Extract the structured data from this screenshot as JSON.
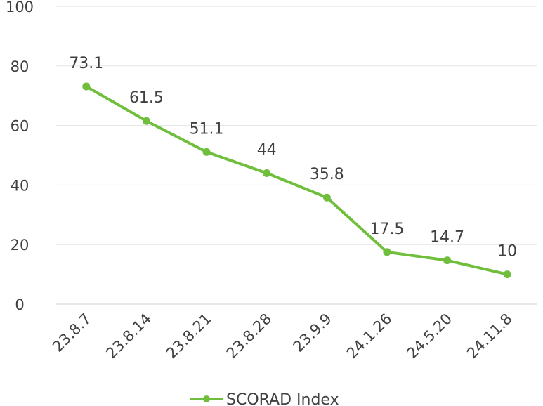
{
  "chart_data": {
    "type": "line",
    "title": "",
    "xlabel": "",
    "ylabel": "",
    "ylim": [
      0,
      100
    ],
    "yticks": [
      0,
      20,
      40,
      60,
      80,
      100
    ],
    "grid": true,
    "legend": "bottom",
    "categories": [
      "23.8.7",
      "23.8.14",
      "23.8.21",
      "23.8.28",
      "23.9.9",
      "24.1.26",
      "24.5.20",
      "24.11.8"
    ],
    "series": [
      {
        "name": "SCORAD Index",
        "color": "#70bf3c",
        "values": [
          73.1,
          61.5,
          51.1,
          44,
          35.8,
          17.5,
          14.7,
          10
        ],
        "data_labels": [
          "73.1",
          "61.5",
          "51.1",
          "44",
          "35.8",
          "17.5",
          "14.7",
          "10"
        ]
      }
    ]
  }
}
